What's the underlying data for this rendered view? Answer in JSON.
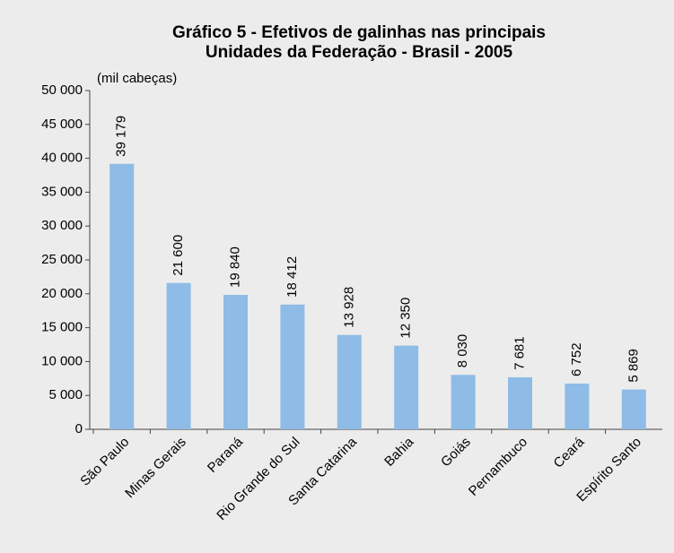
{
  "chart_data": {
    "type": "bar",
    "title": [
      "Gráfico 5 - Efetivos de galinhas nas principais",
      "Unidades da Federação - Brasil - 2005"
    ],
    "y_label": "(mil cabeças)",
    "categories": [
      "São Paulo",
      "Minas Gerais",
      "Paraná",
      "Rio Grande do Sul",
      "Santa Catarina",
      "Bahia",
      "Goiás",
      "Pernambuco",
      "Ceará",
      "Espírito Santo"
    ],
    "values": [
      39179,
      21600,
      19840,
      18412,
      13928,
      12350,
      8030,
      7681,
      6752,
      5869
    ],
    "value_labels": [
      "39 179",
      "21 600",
      "19 840",
      "18 412",
      "13 928",
      "12 350",
      "8 030",
      "7 681",
      "6 752",
      "5 869"
    ],
    "color": "#8ebce6",
    "ylim": [
      0,
      50000
    ],
    "yticks": [
      0,
      {
        "value": 5000,
        "label": "5 000"
      },
      {
        "value": 10000,
        "label": "10 000"
      },
      {
        "value": 15000,
        "label": "15 000"
      },
      {
        "value": 20000,
        "label": "20 000"
      },
      {
        "value": 25000,
        "label": "25 000"
      },
      {
        "value": 30000,
        "label": "30 000"
      },
      {
        "value": 35000,
        "label": "35 000"
      },
      {
        "value": 40000,
        "label": "40 000"
      },
      {
        "value": 45000,
        "label": "45 000"
      },
      {
        "value": 50000,
        "label": "50 000"
      }
    ],
    "grid": false
  }
}
